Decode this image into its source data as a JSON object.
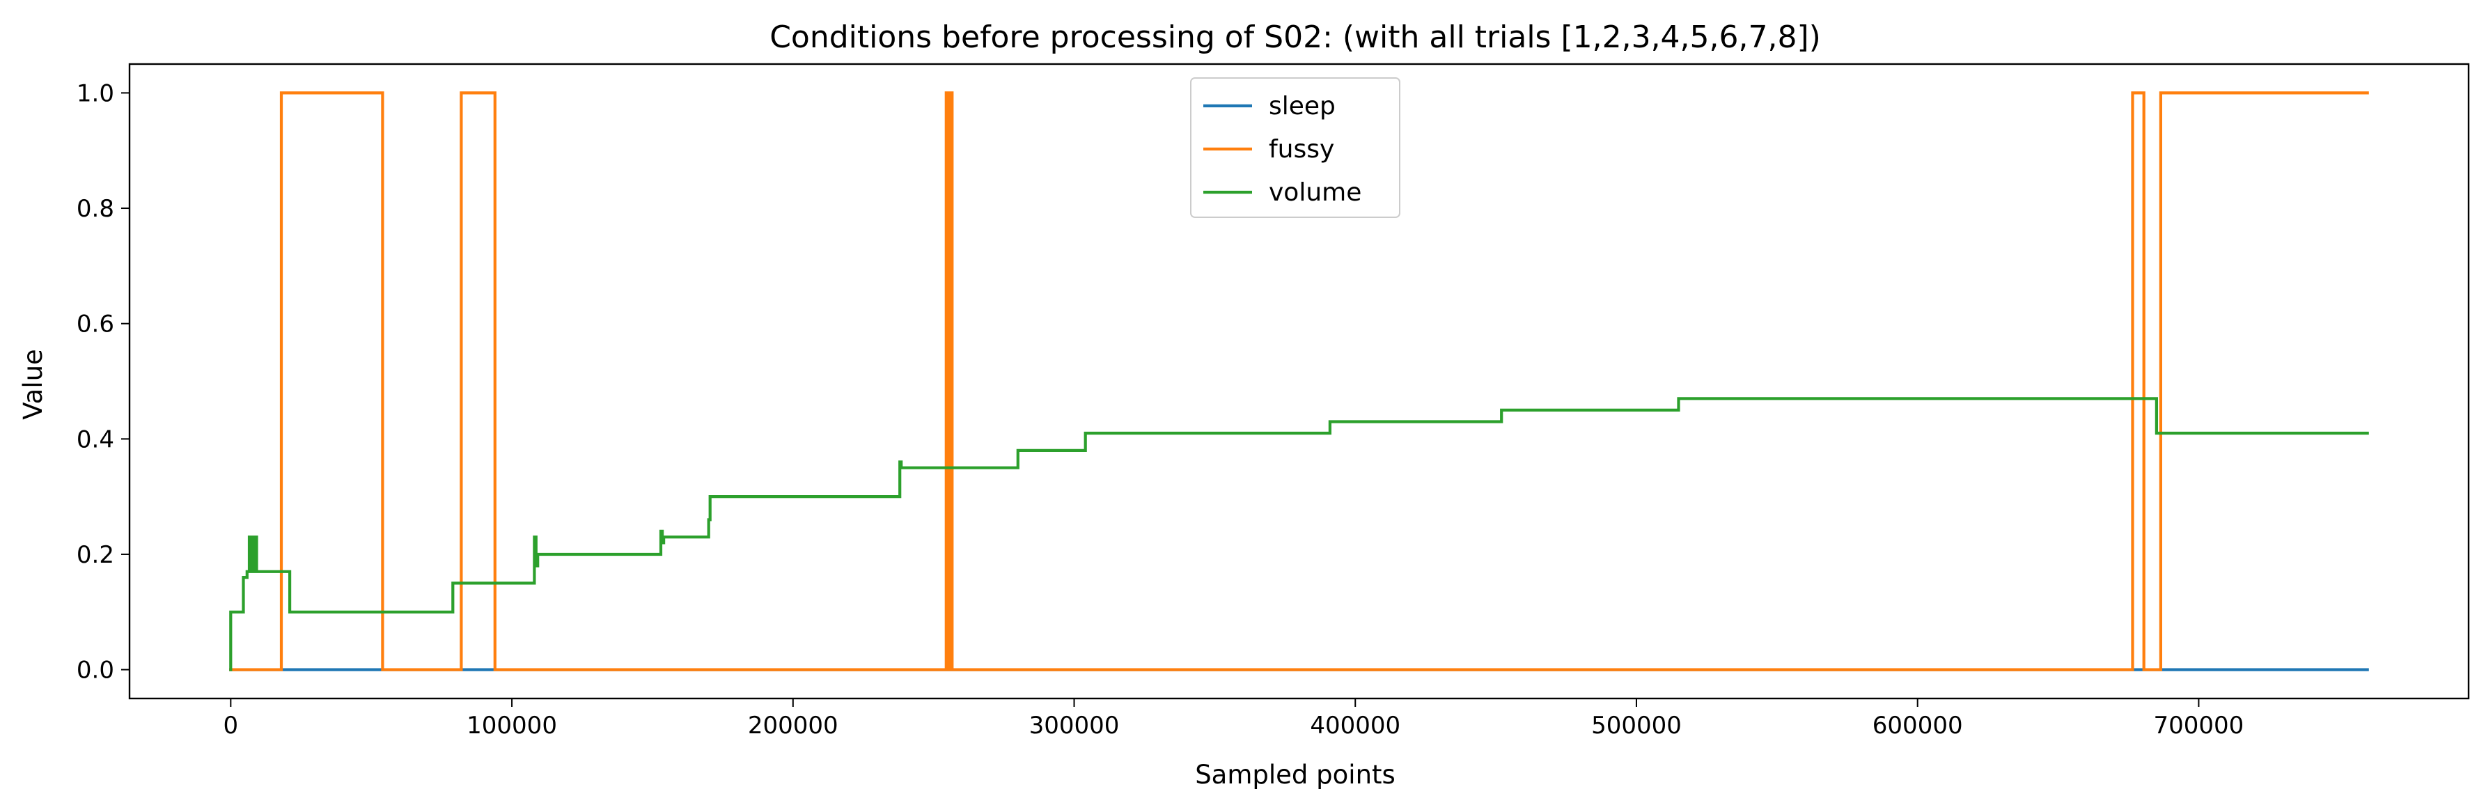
{
  "chart_data": {
    "type": "line",
    "title": "Conditions before processing of S02: (with all trials [1,2,3,4,5,6,7,8])",
    "xlabel": "Sampled points",
    "ylabel": "Value",
    "xlim": [
      -36000,
      796000
    ],
    "ylim": [
      -0.05,
      1.05
    ],
    "xticks": [
      0,
      100000,
      200000,
      300000,
      400000,
      500000,
      600000,
      700000
    ],
    "xtick_labels": [
      "0",
      "100000",
      "200000",
      "300000",
      "400000",
      "500000",
      "600000",
      "700000"
    ],
    "yticks": [
      0.0,
      0.2,
      0.4,
      0.6,
      0.8,
      1.0
    ],
    "ytick_labels": [
      "0.0",
      "0.2",
      "0.4",
      "0.6",
      "0.8",
      "1.0"
    ],
    "grid": false,
    "legend_position": "upper-center",
    "series": [
      {
        "name": "sleep",
        "color": "#1f77b4",
        "points": [
          [
            0,
            0
          ],
          [
            760000,
            0
          ]
        ]
      },
      {
        "name": "fussy",
        "color": "#ff7f0e",
        "points": [
          [
            0,
            0
          ],
          [
            18000,
            0
          ],
          [
            18000,
            1
          ],
          [
            54000,
            1
          ],
          [
            54000,
            0
          ],
          [
            82000,
            0
          ],
          [
            82000,
            1
          ],
          [
            94000,
            1
          ],
          [
            94000,
            0
          ],
          [
            254500,
            0
          ],
          [
            254500,
            1
          ],
          [
            255300,
            1
          ],
          [
            255300,
            0
          ],
          [
            256000,
            0
          ],
          [
            256000,
            1
          ],
          [
            256600,
            1
          ],
          [
            256600,
            0
          ],
          [
            676500,
            0
          ],
          [
            676500,
            1
          ],
          [
            680500,
            1
          ],
          [
            680500,
            0
          ],
          [
            686500,
            0
          ],
          [
            686500,
            1
          ],
          [
            760000,
            1
          ]
        ]
      },
      {
        "name": "volume",
        "color": "#2ca02c",
        "points": [
          [
            0,
            0
          ],
          [
            0,
            0.1
          ],
          [
            4500,
            0.1
          ],
          [
            4500,
            0.16
          ],
          [
            5800,
            0.16
          ],
          [
            5800,
            0.17
          ],
          [
            6600,
            0.17
          ],
          [
            6600,
            0.23
          ],
          [
            7500,
            0.23
          ],
          [
            7500,
            0.17
          ],
          [
            8400,
            0.17
          ],
          [
            8400,
            0.23
          ],
          [
            9200,
            0.23
          ],
          [
            9200,
            0.17
          ],
          [
            21000,
            0.17
          ],
          [
            21000,
            0.1
          ],
          [
            79000,
            0.1
          ],
          [
            79000,
            0.15
          ],
          [
            108000,
            0.15
          ],
          [
            108000,
            0.23
          ],
          [
            108600,
            0.23
          ],
          [
            108600,
            0.18
          ],
          [
            109200,
            0.18
          ],
          [
            109200,
            0.2
          ],
          [
            153000,
            0.2
          ],
          [
            153000,
            0.24
          ],
          [
            153500,
            0.24
          ],
          [
            153500,
            0.22
          ],
          [
            154000,
            0.22
          ],
          [
            154000,
            0.23
          ],
          [
            170000,
            0.23
          ],
          [
            170000,
            0.26
          ],
          [
            170500,
            0.26
          ],
          [
            170500,
            0.3
          ],
          [
            238000,
            0.3
          ],
          [
            238000,
            0.36
          ],
          [
            238500,
            0.36
          ],
          [
            238500,
            0.35
          ],
          [
            280000,
            0.35
          ],
          [
            280000,
            0.38
          ],
          [
            304000,
            0.38
          ],
          [
            304000,
            0.41
          ],
          [
            391000,
            0.41
          ],
          [
            391000,
            0.43
          ],
          [
            452000,
            0.43
          ],
          [
            452000,
            0.45
          ],
          [
            515000,
            0.45
          ],
          [
            515000,
            0.47
          ],
          [
            685000,
            0.47
          ],
          [
            685000,
            0.41
          ],
          [
            760000,
            0.41
          ]
        ]
      }
    ]
  }
}
